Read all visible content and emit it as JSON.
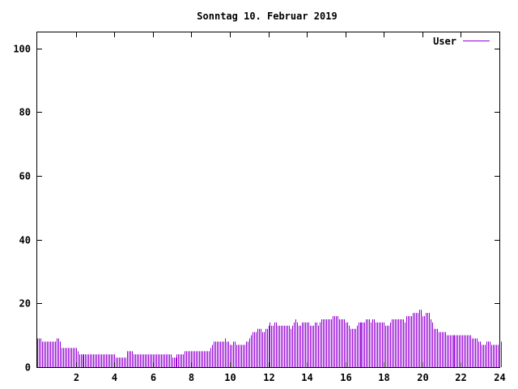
{
  "chart_data": {
    "type": "bar",
    "title": "Sonntag 10. Februar 2019",
    "xlabel": "",
    "ylabel": "",
    "xlim": [
      0,
      24
    ],
    "ylim": [
      0,
      105
    ],
    "xticks": [
      2,
      4,
      6,
      8,
      10,
      12,
      14,
      16,
      18,
      20,
      22,
      24
    ],
    "yticks": [
      0,
      20,
      40,
      60,
      80,
      100
    ],
    "grid": false,
    "legend_position": "top-right",
    "series": [
      {
        "name": "User",
        "color": "#9400d3",
        "interval_minutes": 5,
        "values": [
          9,
          9,
          9,
          8,
          8,
          8,
          8,
          8,
          8,
          8,
          8,
          8,
          9,
          9,
          8,
          6,
          6,
          6,
          6,
          6,
          6,
          6,
          6,
          6,
          6,
          5,
          4,
          4,
          4,
          4,
          4,
          4,
          4,
          4,
          4,
          4,
          4,
          4,
          4,
          4,
          4,
          4,
          4,
          4,
          4,
          4,
          4,
          4,
          4,
          3,
          3,
          3,
          3,
          3,
          3,
          3,
          5,
          5,
          5,
          5,
          4,
          4,
          4,
          4,
          4,
          4,
          4,
          4,
          4,
          4,
          4,
          4,
          4,
          4,
          4,
          4,
          4,
          4,
          4,
          4,
          4,
          4,
          4,
          4,
          3,
          3,
          3,
          4,
          4,
          4,
          4,
          4,
          5,
          5,
          5,
          5,
          5,
          5,
          5,
          5,
          5,
          5,
          5,
          5,
          5,
          5,
          5,
          5,
          6,
          7,
          8,
          8,
          8,
          8,
          8,
          8,
          8,
          9,
          8,
          8,
          7,
          7,
          8,
          8,
          7,
          7,
          7,
          7,
          7,
          7,
          8,
          8,
          9,
          10,
          11,
          11,
          11,
          12,
          12,
          12,
          11,
          11,
          12,
          12,
          13,
          14,
          13,
          13,
          14,
          14,
          13,
          13,
          13,
          13,
          13,
          13,
          13,
          13,
          12,
          13,
          14,
          15,
          14,
          13,
          13,
          14,
          14,
          14,
          14,
          14,
          13,
          13,
          13,
          14,
          14,
          13,
          14,
          15,
          15,
          15,
          15,
          15,
          15,
          15,
          16,
          16,
          16,
          16,
          15,
          15,
          15,
          15,
          14,
          14,
          13,
          12,
          12,
          12,
          12,
          13,
          14,
          14,
          14,
          14,
          14,
          15,
          15,
          15,
          14,
          15,
          15,
          14,
          14,
          14,
          14,
          14,
          14,
          13,
          13,
          13,
          14,
          15,
          15,
          15,
          15,
          15,
          15,
          15,
          15,
          14,
          16,
          16,
          16,
          16,
          17,
          17,
          17,
          17,
          18,
          18,
          16,
          16,
          17,
          17,
          17,
          15,
          14,
          12,
          12,
          12,
          11,
          11,
          11,
          11,
          11,
          10,
          10,
          10,
          10,
          10,
          10,
          10,
          10,
          10,
          10,
          10,
          10,
          10,
          10,
          10,
          10,
          9,
          9,
          9,
          9,
          8,
          8,
          7,
          7,
          7,
          8,
          8,
          8,
          7,
          7,
          7,
          7,
          7,
          9,
          8
        ]
      }
    ]
  }
}
